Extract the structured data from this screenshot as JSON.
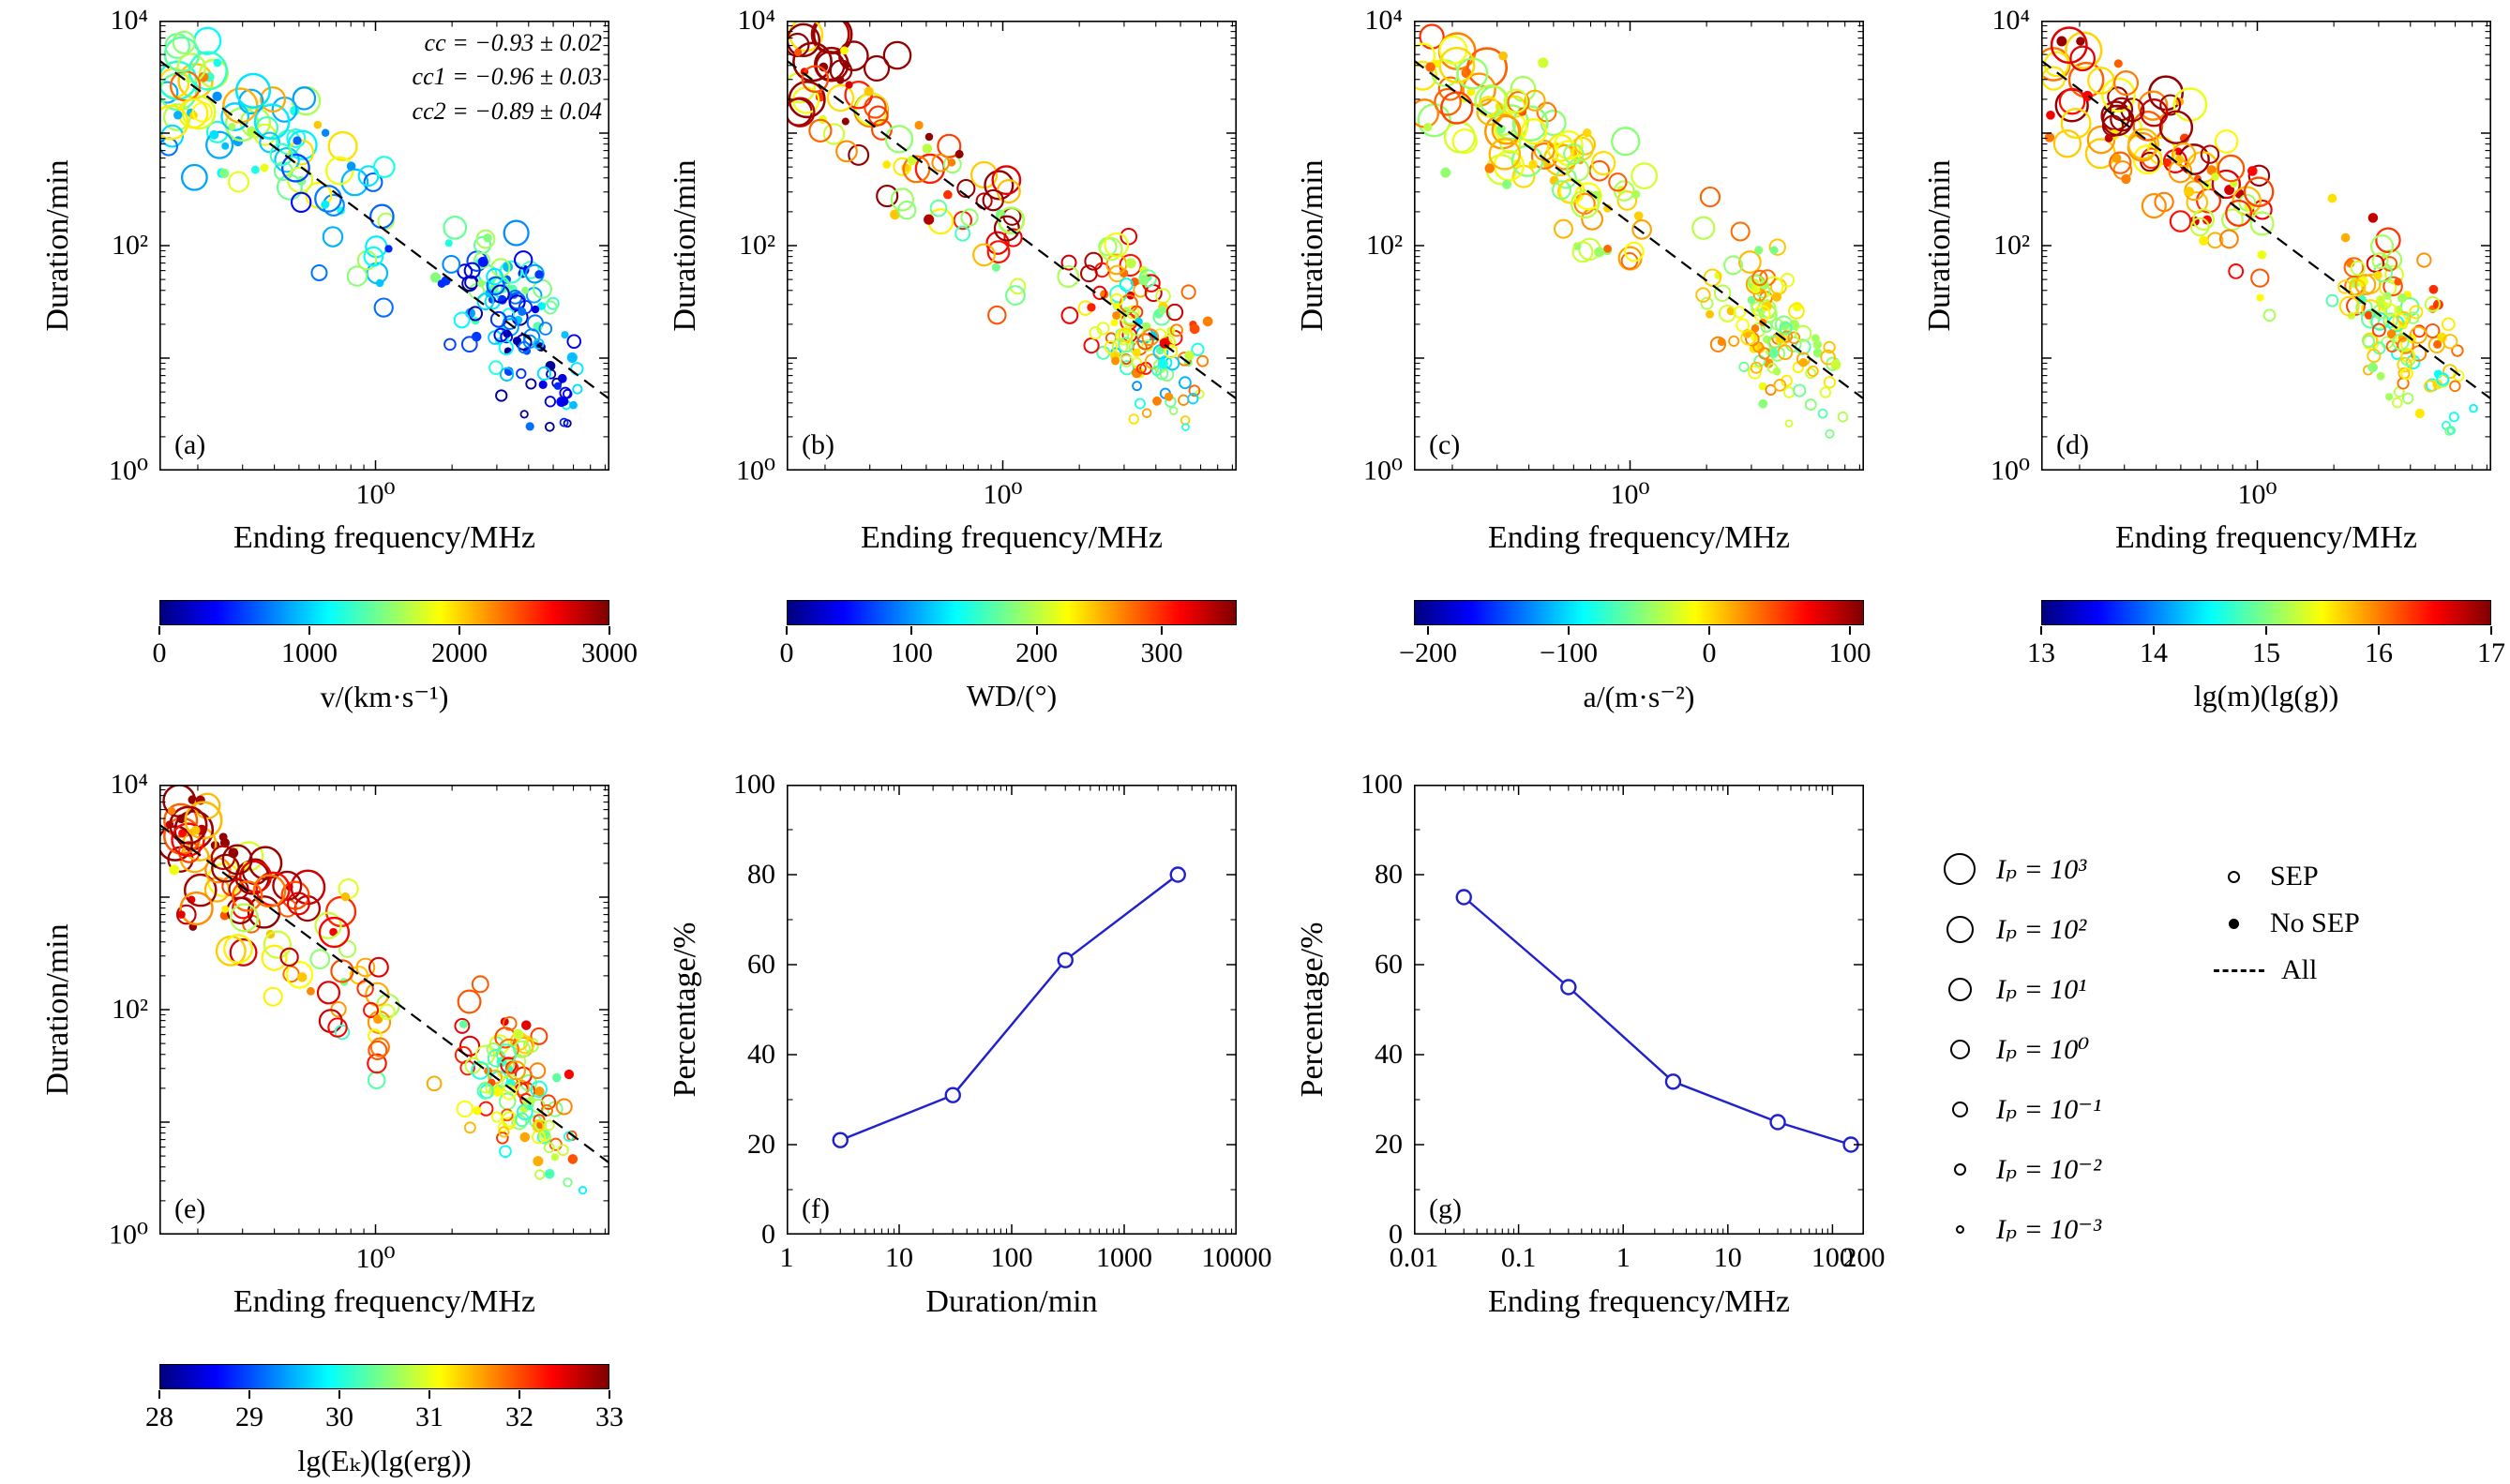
{
  "figure": {
    "background": "#ffffff",
    "colormap_stops": [
      "#00007F",
      "#0000FF",
      "#00FFFF",
      "#FFFF00",
      "#FF0000",
      "#7F0000"
    ],
    "line_color": "#2020CC",
    "legend": {
      "size_items": [
        {
          "label": "Iₚ = 10³",
          "r": 17
        },
        {
          "label": "Iₚ = 10²",
          "r": 14.5
        },
        {
          "label": "Iₚ = 10¹",
          "r": 12.5
        },
        {
          "label": "Iₚ = 10⁰",
          "r": 10.5
        },
        {
          "label": "Iₚ = 10⁻¹",
          "r": 8.5
        },
        {
          "label": "Iₚ = 10⁻²",
          "r": 6.5
        },
        {
          "label": "Iₚ = 10⁻³",
          "r": 4.5
        }
      ],
      "marker_items": [
        {
          "label": "SEP",
          "type": "open"
        },
        {
          "label": "No SEP",
          "type": "filled"
        },
        {
          "label": "All",
          "type": "dashed"
        }
      ]
    }
  },
  "chart_data": [
    {
      "id": "a",
      "type": "scatter",
      "panel_label": "(a)",
      "xlabel": "Ending frequency/MHz",
      "ylabel": "Duration/min",
      "x_range_log10": [
        -0.85,
        0.92
      ],
      "y_range_log10": [
        0,
        4
      ],
      "x_ticks": [
        {
          "log10": 0,
          "label": "10⁰"
        }
      ],
      "y_ticks": [
        {
          "log10": 0,
          "label": "10⁰"
        },
        {
          "log10": 2,
          "label": "10²"
        },
        {
          "log10": 4,
          "label": "10⁴"
        }
      ],
      "trend_line": {
        "style": "dashed",
        "intercept_log10": 2.2,
        "slope": -1.7
      },
      "annotation": [
        "cc = −0.93 ± 0.02",
        "cc1 = −0.96 ± 0.03",
        "cc2 = −0.89 ± 0.04"
      ],
      "scatter": {
        "seed": 11,
        "count": 215,
        "filled_fraction": 0.3,
        "color_base": 0.05,
        "color_yfactor": 0.55,
        "color_noise": 0.5
      },
      "colorbar": {
        "label": "v/(km·s⁻¹)",
        "min": 0,
        "max": 3000,
        "ticks": [
          {
            "value": 0,
            "label": "0"
          },
          {
            "value": 1000,
            "label": "1000"
          },
          {
            "value": 2000,
            "label": "2000"
          },
          {
            "value": 3000,
            "label": "3000"
          }
        ]
      }
    },
    {
      "id": "b",
      "type": "scatter",
      "panel_label": "(b)",
      "xlabel": "Ending frequency/MHz",
      "ylabel": "Duration/min",
      "x_range_log10": [
        -0.85,
        0.92
      ],
      "y_range_log10": [
        0,
        4
      ],
      "x_ticks": [
        {
          "log10": 0,
          "label": "10⁰"
        }
      ],
      "y_ticks": [
        {
          "log10": 0,
          "label": "10⁰"
        },
        {
          "log10": 2,
          "label": "10²"
        },
        {
          "log10": 4,
          "label": "10⁴"
        }
      ],
      "trend_line": {
        "style": "dashed",
        "intercept_log10": 2.2,
        "slope": -1.7
      },
      "scatter": {
        "seed": 23,
        "count": 215,
        "filled_fraction": 0.3,
        "color_base": 0.45,
        "color_yfactor": 0.5,
        "color_noise": 0.6
      },
      "colorbar": {
        "label": "WD/(°)",
        "min": 0,
        "max": 360,
        "ticks": [
          {
            "value": 0,
            "label": "0"
          },
          {
            "value": 100,
            "label": "100"
          },
          {
            "value": 200,
            "label": "200"
          },
          {
            "value": 300,
            "label": "300"
          }
        ]
      }
    },
    {
      "id": "c",
      "type": "scatter",
      "panel_label": "(c)",
      "xlabel": "Ending frequency/MHz",
      "ylabel": "Duration/min",
      "x_range_log10": [
        -0.85,
        0.92
      ],
      "y_range_log10": [
        0,
        4
      ],
      "x_ticks": [
        {
          "log10": 0,
          "label": "10⁰"
        }
      ],
      "y_ticks": [
        {
          "log10": 0,
          "label": "10⁰"
        },
        {
          "log10": 2,
          "label": "10²"
        },
        {
          "log10": 4,
          "label": "10⁴"
        }
      ],
      "trend_line": {
        "style": "dashed",
        "intercept_log10": 2.2,
        "slope": -1.7
      },
      "scatter": {
        "seed": 37,
        "count": 215,
        "filled_fraction": 0.3,
        "color_base": 0.58,
        "color_yfactor": 0.1,
        "color_noise": 0.3
      },
      "colorbar": {
        "label": "a/(m·s⁻²)",
        "min": -210,
        "max": 110,
        "ticks": [
          {
            "value": -200,
            "label": "−200"
          },
          {
            "value": -100,
            "label": "−100"
          },
          {
            "value": 0,
            "label": "0"
          },
          {
            "value": 100,
            "label": "100"
          }
        ]
      }
    },
    {
      "id": "d",
      "type": "scatter",
      "panel_label": "(d)",
      "xlabel": "Ending frequency/MHz",
      "ylabel": "Duration/min",
      "x_range_log10": [
        -0.85,
        0.92
      ],
      "y_range_log10": [
        0,
        4
      ],
      "x_ticks": [
        {
          "log10": 0,
          "label": "10⁰"
        }
      ],
      "y_ticks": [
        {
          "log10": 0,
          "label": "10⁰"
        },
        {
          "log10": 2,
          "label": "10²"
        },
        {
          "log10": 4,
          "label": "10⁴"
        }
      ],
      "trend_line": {
        "style": "dashed",
        "intercept_log10": 2.2,
        "slope": -1.7
      },
      "scatter": {
        "seed": 49,
        "count": 215,
        "filled_fraction": 0.3,
        "color_base": 0.5,
        "color_yfactor": 0.4,
        "color_noise": 0.45
      },
      "colorbar": {
        "label": "lg(m)(lg(g))",
        "min": 13,
        "max": 17,
        "ticks": [
          {
            "value": 13,
            "label": "13"
          },
          {
            "value": 14,
            "label": "14"
          },
          {
            "value": 15,
            "label": "15"
          },
          {
            "value": 16,
            "label": "16"
          },
          {
            "value": 17,
            "label": "17"
          }
        ]
      }
    },
    {
      "id": "e",
      "type": "scatter",
      "panel_label": "(e)",
      "xlabel": "Ending frequency/MHz",
      "ylabel": "Duration/min",
      "x_range_log10": [
        -0.85,
        0.92
      ],
      "y_range_log10": [
        0,
        4
      ],
      "x_ticks": [
        {
          "log10": 0,
          "label": "10⁰"
        }
      ],
      "y_ticks": [
        {
          "log10": 0,
          "label": "10⁰"
        },
        {
          "log10": 2,
          "label": "10²"
        },
        {
          "log10": 4,
          "label": "10⁴"
        }
      ],
      "trend_line": {
        "style": "dashed",
        "intercept_log10": 2.2,
        "slope": -1.7
      },
      "scatter": {
        "seed": 61,
        "count": 215,
        "filled_fraction": 0.3,
        "color_base": 0.5,
        "color_yfactor": 0.4,
        "color_noise": 0.5
      },
      "colorbar": {
        "label": "lg(Eₖ)(lg(erg))",
        "min": 28,
        "max": 33,
        "ticks": [
          {
            "value": 28,
            "label": "28"
          },
          {
            "value": 29,
            "label": "29"
          },
          {
            "value": 30,
            "label": "30"
          },
          {
            "value": 31,
            "label": "31"
          },
          {
            "value": 32,
            "label": "32"
          },
          {
            "value": 33,
            "label": "33"
          }
        ]
      }
    },
    {
      "id": "f",
      "type": "line",
      "panel_label": "(f)",
      "xlabel": "Duration/min",
      "ylabel": "Percentage/%",
      "x_range_log10": [
        0,
        4
      ],
      "y_range": [
        0,
        100
      ],
      "x_ticks": [
        {
          "log10": 0,
          "label": "1"
        },
        {
          "log10": 1,
          "label": "10"
        },
        {
          "log10": 2,
          "label": "100"
        },
        {
          "log10": 3,
          "label": "1000"
        },
        {
          "log10": 4,
          "label": "10000"
        }
      ],
      "y_ticks": [
        {
          "value": 0,
          "label": "0"
        },
        {
          "value": 20,
          "label": "20"
        },
        {
          "value": 40,
          "label": "40"
        },
        {
          "value": 60,
          "label": "60"
        },
        {
          "value": 80,
          "label": "80"
        },
        {
          "value": 100,
          "label": "100"
        }
      ],
      "points": {
        "x": [
          3,
          30,
          300,
          3000
        ],
        "y": [
          21,
          31,
          61,
          80
        ]
      }
    },
    {
      "id": "g",
      "type": "line",
      "panel_label": "(g)",
      "xlabel": "Ending frequency/MHz",
      "ylabel": "Percentage/%",
      "x_range_log10": [
        -2,
        2.301
      ],
      "y_range": [
        0,
        100
      ],
      "x_ticks": [
        {
          "log10": -2,
          "label": "0.01"
        },
        {
          "log10": -1,
          "label": "0.1"
        },
        {
          "log10": 0,
          "label": "1"
        },
        {
          "log10": 1,
          "label": "10"
        },
        {
          "log10": 2,
          "label": "100"
        },
        {
          "log10": 2.301,
          "label": "200"
        }
      ],
      "y_ticks": [
        {
          "value": 0,
          "label": "0"
        },
        {
          "value": 20,
          "label": "20"
        },
        {
          "value": 40,
          "label": "40"
        },
        {
          "value": 60,
          "label": "60"
        },
        {
          "value": 80,
          "label": "80"
        },
        {
          "value": 100,
          "label": "100"
        }
      ],
      "points": {
        "x": [
          0.03,
          0.3,
          3,
          30,
          150
        ],
        "y": [
          75,
          55,
          34,
          25,
          20
        ]
      }
    }
  ]
}
